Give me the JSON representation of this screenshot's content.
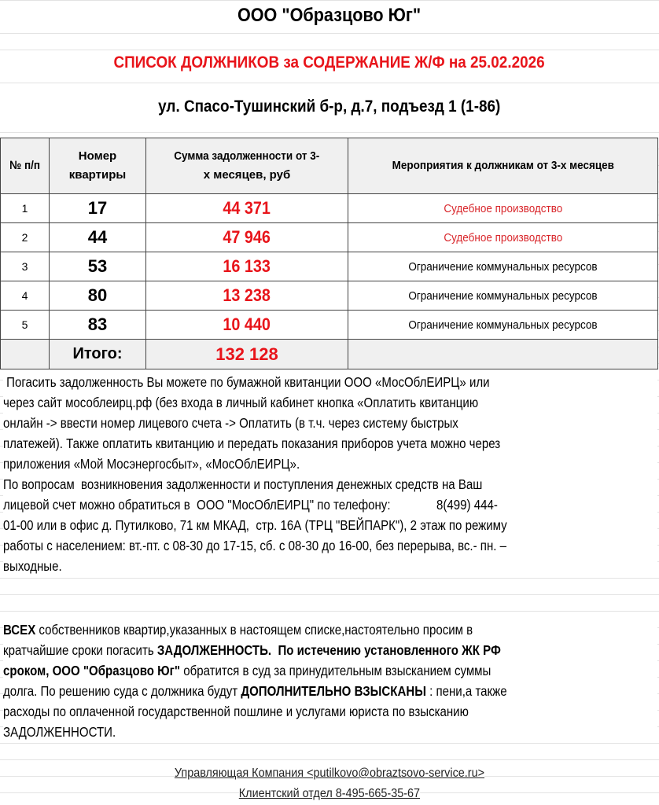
{
  "title": "ООО \"Образцово Юг\"",
  "subtitle": "СПИСОК ДОЛЖНИКОВ за СОДЕРЖАНИЕ Ж/Ф  на 25.02.2026",
  "address": "ул. Спасо-Тушинский б-р, д.7, подъезд 1 (1-86)",
  "table": {
    "headers": {
      "num": "№ п/п",
      "apt_line1": "Номер",
      "apt_line2": "квартиры",
      "sum_line1": "Сумма  задолженности от  3-",
      "sum_line2": "х месяцев, руб",
      "action": "Мероприятия к должникам от 3-х месяцев"
    },
    "rows": [
      {
        "num": "1",
        "apartment": "17",
        "sum": "44 371",
        "action": "Судебное производство",
        "action_color": "red"
      },
      {
        "num": "2",
        "apartment": "44",
        "sum": "47 946",
        "action": "Судебное производство",
        "action_color": "red"
      },
      {
        "num": "3",
        "apartment": "53",
        "sum": "16 133",
        "action": "Ограничение  коммунальных  ресурсов",
        "action_color": "black"
      },
      {
        "num": "4",
        "apartment": "80",
        "sum": "13 238",
        "action": "Ограничение  коммунальных  ресурсов",
        "action_color": "black"
      },
      {
        "num": "5",
        "apartment": "83",
        "sum": "10 440",
        "action": "Ограничение  коммунальных  ресурсов",
        "action_color": "black"
      }
    ],
    "total_label": "Итого:",
    "total_sum": "132 128"
  },
  "paragraphs": [
    [
      [
        {
          "t": " Погасить задолженность Вы можете по бумажной квитанции ООО «МосОблЕИРЦ» или"
        }
      ],
      [
        {
          "t": "через сайт мособлеирц.рф (без входа в личный кабинет кнопка «Оплатить квитанцию"
        }
      ],
      [
        {
          "t": "онлайн -> ввести номер лицевого счета -> Оплатить (в т.ч. через систему быстрых"
        }
      ],
      [
        {
          "t": "платежей). Также оплатить квитанцию и передать показания приборов учета можно через"
        }
      ],
      [
        {
          "t": "приложения «Мой Мосэнергосбыт», «МосОблЕИРЦ»."
        }
      ],
      [
        {
          "t": "По вопросам  возникновения задолженности и поступления денежных средств на Ваш"
        }
      ],
      [
        {
          "t": "лицевой счет можно обратиться в  ООО \"МосОблЕИРЦ\" по телефону:              8(499) 444-"
        }
      ],
      [
        {
          "t": "01-00 или в офис д. Путилково, 71 км МКАД,  стр. 16А (ТРЦ \"ВЕЙПАРК\"), 2 этаж по режиму"
        }
      ],
      [
        {
          "t": "работы с населением: вт.-пт. с 08-30 до 17-15, сб. с 08-30 до 16-00, без перерыва, вс.- пн. –"
        }
      ],
      [
        {
          "t": "выходные."
        }
      ]
    ],
    [
      [
        {
          "t": "ВСЕХ",
          "b": true
        },
        {
          "t": " собственников квартир,указанных в настоящем списке,настоятельно просим в"
        }
      ],
      [
        {
          "t": "кратчайшие сроки погасить "
        },
        {
          "t": "ЗАДОЛЖЕННОСТЬ.  По истечению установленного ЖК РФ",
          "b": true
        }
      ],
      [
        {
          "t": "сроком, ООО \"Образцово Юг\"",
          "b": true
        },
        {
          "t": " обратится в суд за принудительным взысканием суммы"
        }
      ],
      [
        {
          "t": "долга. По решению суда с должника будут "
        },
        {
          "t": "ДОПОЛНИТЕЛЬНО ВЗЫСКАНЫ",
          "b": true
        },
        {
          "t": " : пени,а также"
        }
      ],
      [
        {
          "t": "расходы по оплаченной государственной пошлине и услугами юриста по взысканию"
        }
      ],
      [
        {
          "t": "ЗАДОЛЖЕННОСТИ."
        }
      ]
    ]
  ],
  "footer": {
    "company": "Управляющая Компания <putilkovo@obraztsovo-service.ru>",
    "client_dept": "Клиентский  отдел  8-495-665-35-67"
  },
  "colors": {
    "accent_red": "#e8141a",
    "header_bg": "#f0f0f0"
  }
}
